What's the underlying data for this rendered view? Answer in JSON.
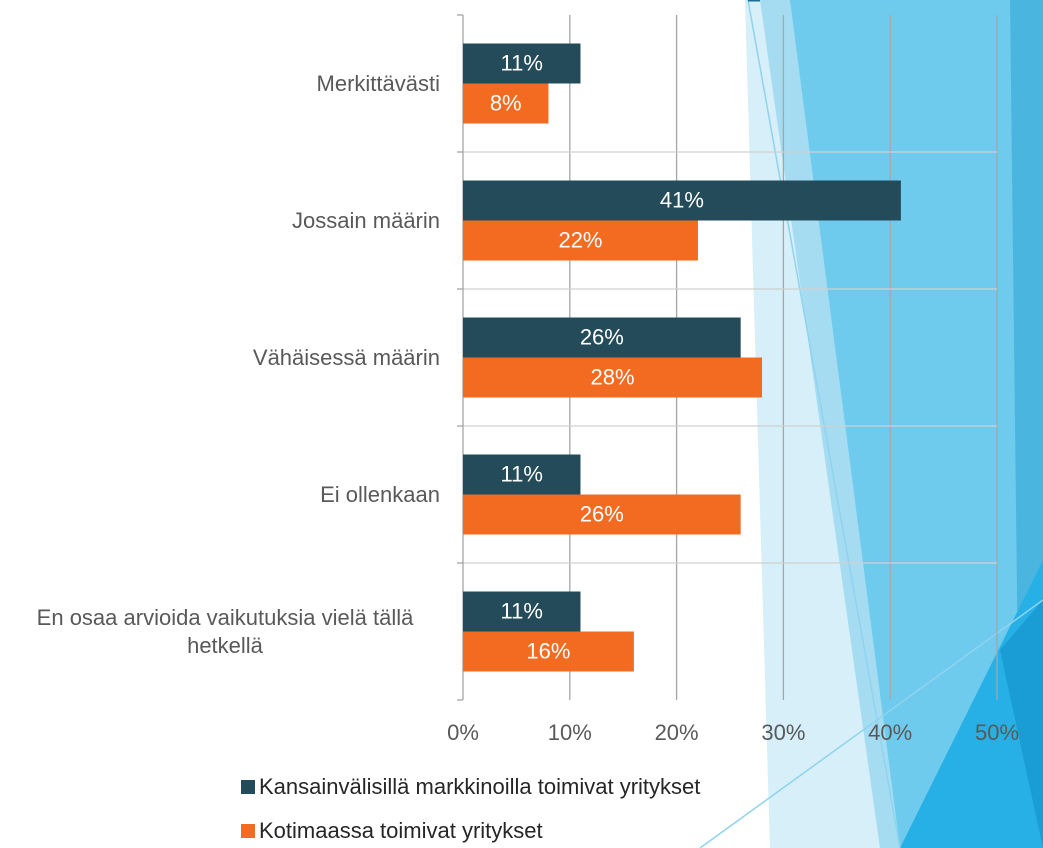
{
  "chart_data": {
    "type": "bar",
    "orientation": "horizontal",
    "categories": [
      "Merkittävästi",
      "Jossain määrin",
      "Vähäisessä määrin",
      "Ei ollenkaan",
      "En osaa arvioida vaikutuksia vielä tällä hetkellä"
    ],
    "series": [
      {
        "name": "Kansainvälisillä markkinoilla toimivat yritykset",
        "color": "#234b5a",
        "values": [
          11,
          41,
          26,
          11,
          11
        ],
        "value_labels": [
          "11%",
          "41%",
          "26%",
          "11%",
          "11%"
        ]
      },
      {
        "name": "Kotimaassa toimivat yritykset",
        "color": "#f26b21",
        "values": [
          8,
          22,
          28,
          26,
          16
        ],
        "value_labels": [
          "8%",
          "22%",
          "28%",
          "26%",
          "16%"
        ]
      }
    ],
    "xlim": [
      0,
      50
    ],
    "xticks": [
      {
        "value": 0,
        "label": "0%"
      },
      {
        "value": 10,
        "label": "10%"
      },
      {
        "value": 20,
        "label": "20%"
      },
      {
        "value": 30,
        "label": "30%"
      },
      {
        "value": 40,
        "label": "40%"
      },
      {
        "value": 50,
        "label": "50%"
      }
    ],
    "grid": true,
    "legend": "bottom"
  }
}
